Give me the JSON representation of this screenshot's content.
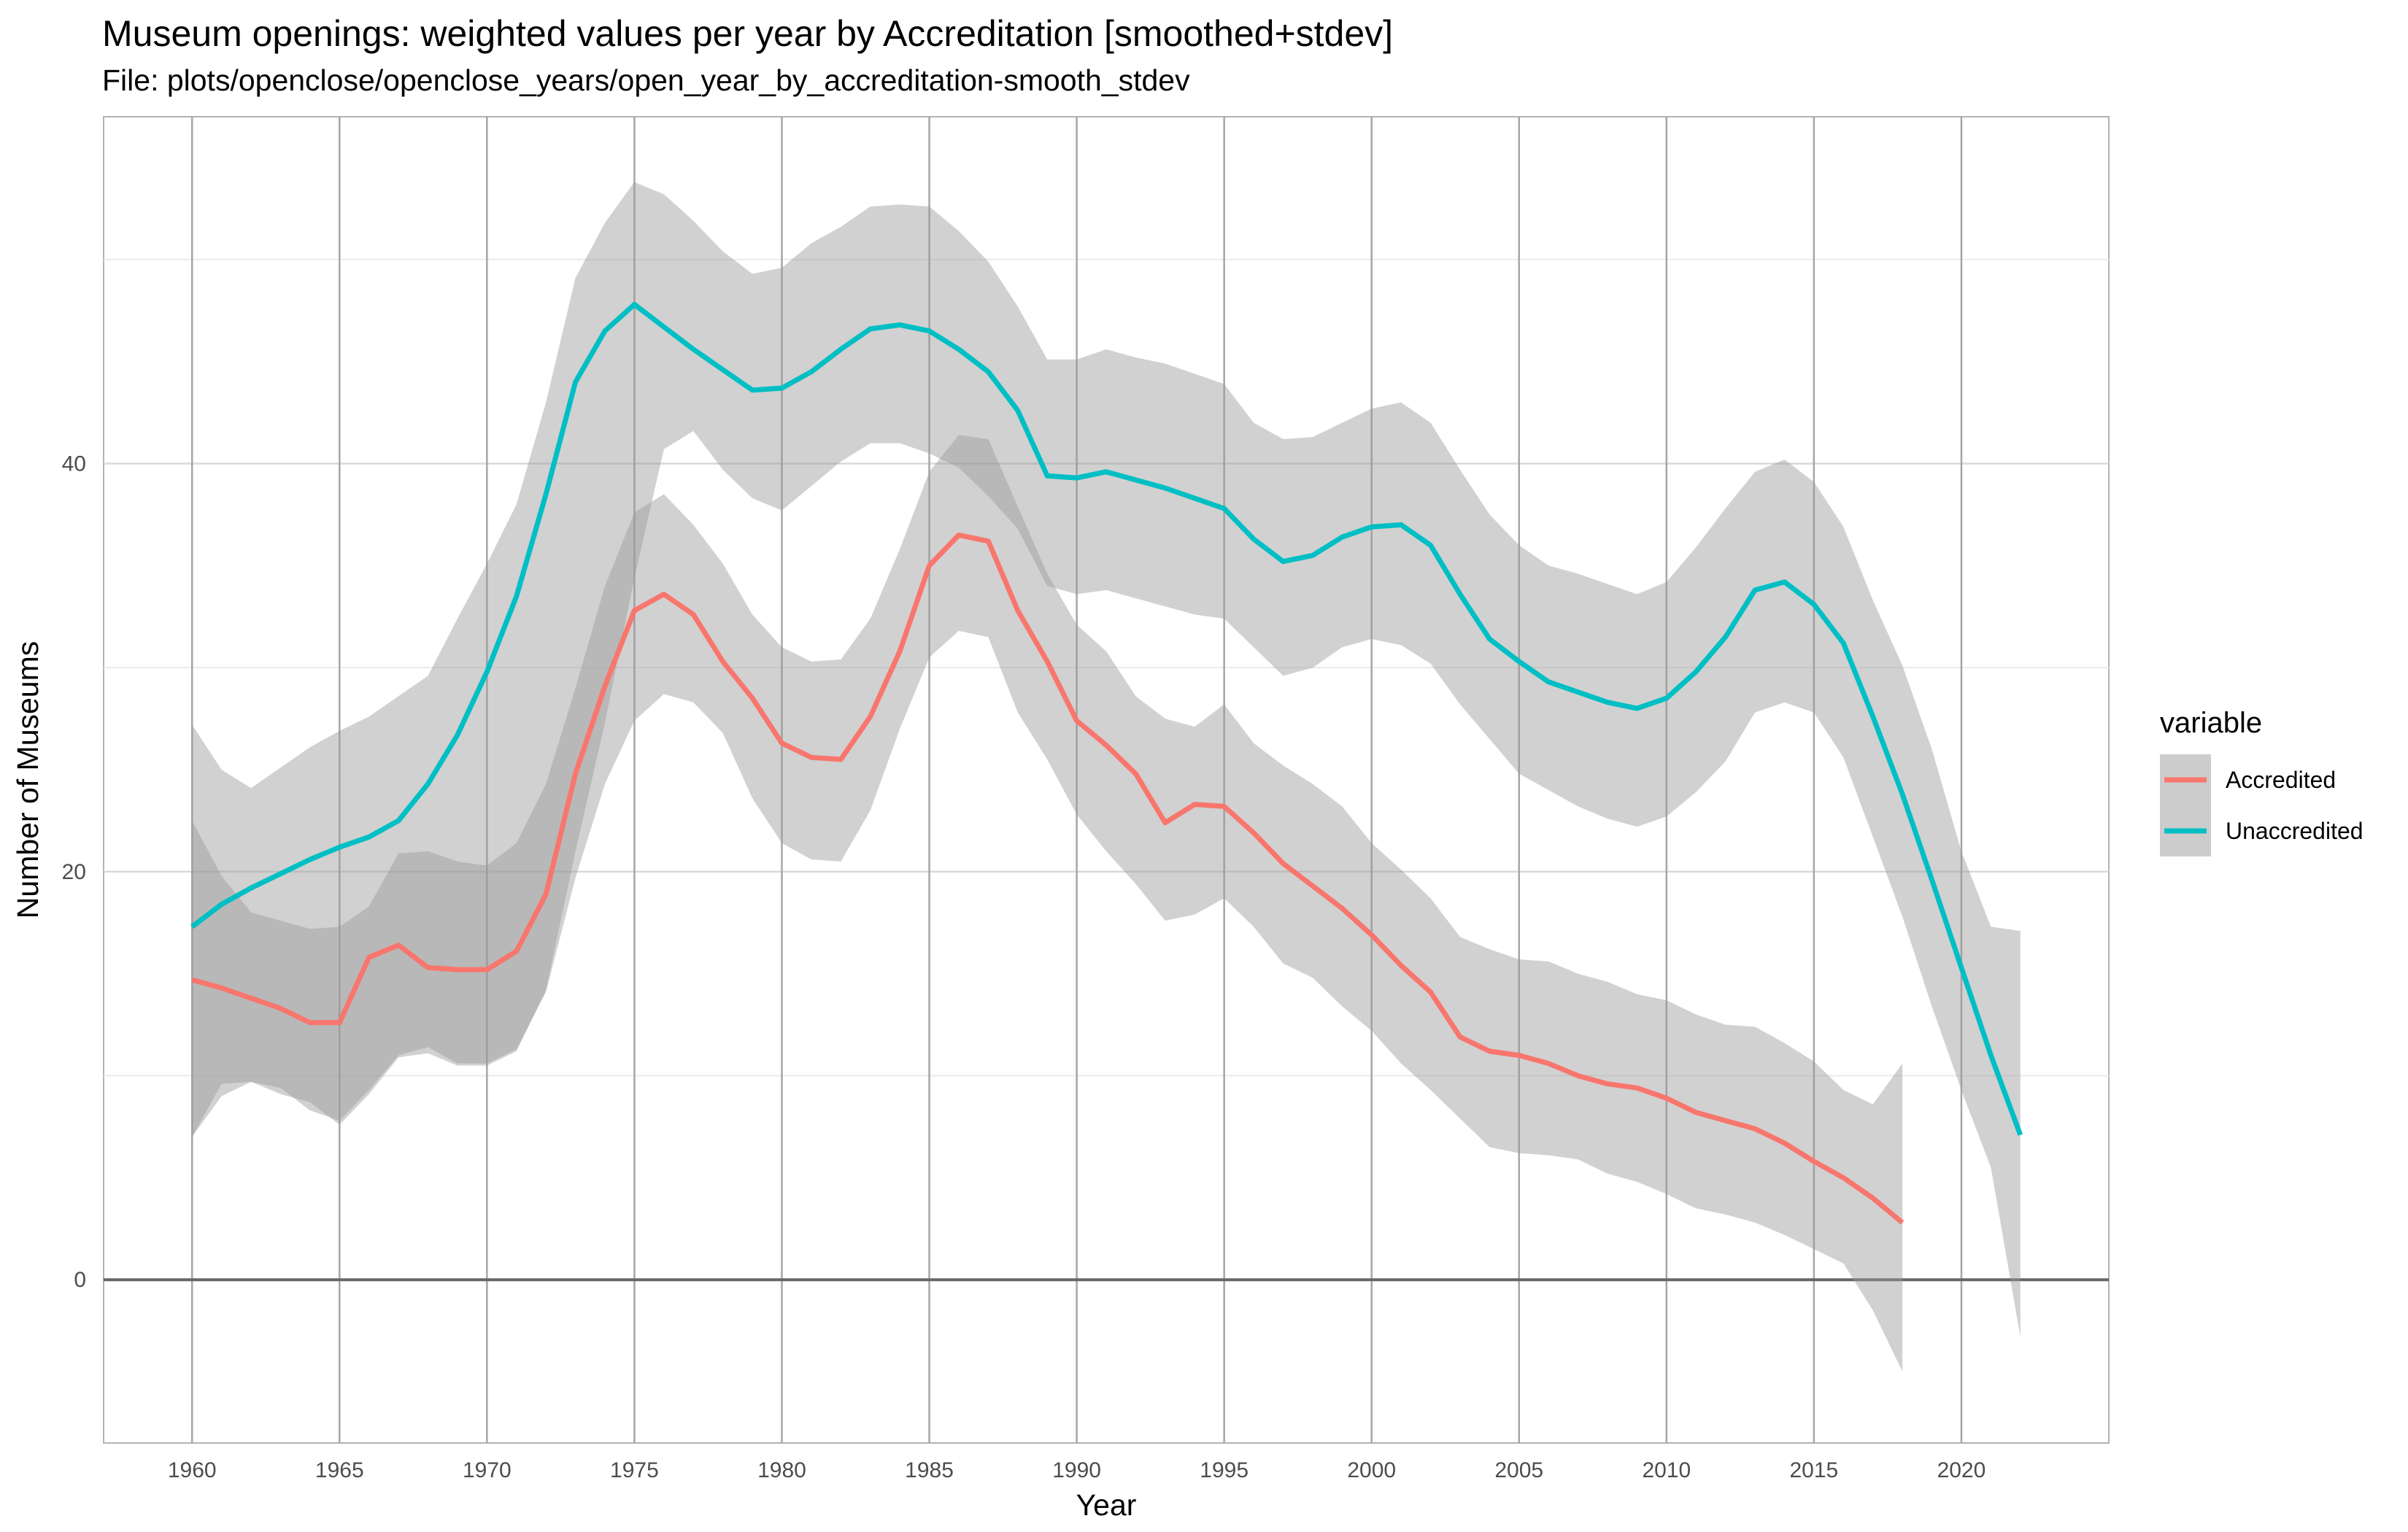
{
  "chart_data": {
    "type": "line",
    "title": "Museum openings: weighted values per year by Accreditation [smoothed+stdev]",
    "subtitle": "File: plots/openclose/openclose_years/open_year_by_accreditation-smooth_stdev",
    "xlabel": "Year",
    "ylabel": "Number of Museums",
    "xlim": [
      1957,
      2025
    ],
    "ylim": [
      -8,
      57
    ],
    "x_ticks": [
      1960,
      1965,
      1970,
      1975,
      1980,
      1985,
      1990,
      1995,
      2000,
      2005,
      2010,
      2015,
      2020
    ],
    "y_ticks": [
      0,
      20,
      40
    ],
    "grid": true,
    "reference_line_y": 0,
    "legend_title": "variable",
    "legend_position": "right",
    "series": [
      {
        "name": "Accredited",
        "color": "#F8766D",
        "x": [
          1960,
          1961,
          1962,
          1963,
          1964,
          1965,
          1966,
          1967,
          1968,
          1969,
          1970,
          1971,
          1972,
          1973,
          1974,
          1975,
          1976,
          1977,
          1978,
          1979,
          1980,
          1981,
          1982,
          1983,
          1984,
          1985,
          1986,
          1987,
          1988,
          1989,
          1990,
          1991,
          1992,
          1993,
          1994,
          1995,
          1996,
          1997,
          1998,
          1999,
          2000,
          2001,
          2002,
          2003,
          2004,
          2005,
          2006,
          2007,
          2008,
          2009,
          2010,
          2011,
          2012,
          2013,
          2014,
          2015,
          2016,
          2017,
          2018
        ],
        "y": [
          14.7,
          14.3,
          13.8,
          13.3,
          12.6,
          12.6,
          15.8,
          16.4,
          15.3,
          15.2,
          15.2,
          16.1,
          18.9,
          24.8,
          29.1,
          32.8,
          33.6,
          32.6,
          30.3,
          28.5,
          26.3,
          25.6,
          25.5,
          27.6,
          30.8,
          35.0,
          36.5,
          36.2,
          32.8,
          30.3,
          27.4,
          26.2,
          24.8,
          22.4,
          23.3,
          23.2,
          21.9,
          20.4,
          19.3,
          18.2,
          16.9,
          15.4,
          14.1,
          11.9,
          11.2,
          11.0,
          10.6,
          10.0,
          9.6,
          9.4,
          8.9,
          8.2,
          7.8,
          7.4,
          6.7,
          5.8,
          5.0,
          4.0,
          2.8
        ],
        "lower": [
          7.0,
          9.0,
          9.7,
          9.4,
          8.3,
          7.8,
          9.3,
          11.0,
          11.4,
          10.6,
          10.6,
          11.3,
          14.1,
          19.7,
          24.3,
          27.4,
          28.7,
          28.3,
          26.8,
          23.6,
          21.4,
          20.6,
          20.5,
          23.0,
          27.0,
          30.5,
          31.8,
          31.5,
          27.8,
          25.5,
          22.8,
          21.0,
          19.4,
          17.6,
          17.9,
          18.7,
          17.3,
          15.5,
          14.8,
          13.4,
          12.2,
          10.6,
          9.3,
          7.9,
          6.5,
          6.2,
          6.1,
          5.9,
          5.2,
          4.8,
          4.2,
          3.5,
          3.2,
          2.8,
          2.2,
          1.5,
          0.8,
          -1.5,
          -4.5
        ],
        "upper": [
          22.5,
          19.8,
          18.0,
          17.6,
          17.2,
          17.3,
          18.3,
          20.9,
          21.0,
          20.5,
          20.3,
          21.4,
          24.3,
          29.0,
          34.0,
          37.6,
          38.5,
          37.0,
          35.1,
          32.6,
          31.0,
          30.3,
          30.4,
          32.4,
          35.8,
          39.6,
          41.4,
          41.2,
          37.9,
          34.6,
          32.1,
          30.8,
          28.6,
          27.5,
          27.1,
          28.2,
          26.3,
          25.2,
          24.3,
          23.2,
          21.4,
          20.1,
          18.7,
          16.8,
          16.2,
          15.7,
          15.6,
          15.0,
          14.6,
          14.0,
          13.7,
          13.0,
          12.5,
          12.4,
          11.6,
          10.7,
          9.3,
          8.6,
          10.6
        ]
      },
      {
        "name": "Unaccredited",
        "color": "#00BFC4",
        "x": [
          1960,
          1961,
          1962,
          1963,
          1964,
          1965,
          1966,
          1967,
          1968,
          1969,
          1970,
          1971,
          1972,
          1973,
          1974,
          1975,
          1976,
          1977,
          1978,
          1979,
          1980,
          1981,
          1982,
          1983,
          1984,
          1985,
          1986,
          1987,
          1988,
          1989,
          1990,
          1991,
          1992,
          1993,
          1994,
          1995,
          1996,
          1997,
          1998,
          1999,
          2000,
          2001,
          2002,
          2003,
          2004,
          2005,
          2006,
          2007,
          2008,
          2009,
          2010,
          2011,
          2012,
          2013,
          2014,
          2015,
          2016,
          2017,
          2018,
          2019,
          2020,
          2021,
          2022
        ],
        "y": [
          17.3,
          18.4,
          19.2,
          19.9,
          20.6,
          21.2,
          21.7,
          22.5,
          24.3,
          26.7,
          29.8,
          33.5,
          38.5,
          44.0,
          46.5,
          47.8,
          46.7,
          45.6,
          44.6,
          43.6,
          43.7,
          44.5,
          45.6,
          46.6,
          46.8,
          46.5,
          45.6,
          44.5,
          42.6,
          39.4,
          39.3,
          39.6,
          39.2,
          38.8,
          38.3,
          37.8,
          36.3,
          35.2,
          35.5,
          36.4,
          36.9,
          37.0,
          36.0,
          33.6,
          31.4,
          30.3,
          29.3,
          28.8,
          28.3,
          28.0,
          28.5,
          29.8,
          31.5,
          33.8,
          34.2,
          33.1,
          31.2,
          27.6,
          23.8,
          19.6,
          15.3,
          11.0,
          7.1
        ],
        "lower": [
          7.0,
          9.6,
          9.7,
          9.1,
          8.7,
          7.6,
          9.1,
          10.9,
          11.1,
          10.5,
          10.5,
          11.2,
          14.2,
          21.0,
          27.3,
          34.4,
          40.7,
          41.6,
          39.7,
          38.3,
          37.7,
          38.9,
          40.1,
          41.0,
          41.0,
          40.5,
          39.8,
          38.4,
          36.8,
          34.0,
          33.6,
          33.8,
          33.4,
          33.0,
          32.6,
          32.4,
          31.0,
          29.6,
          30.0,
          31.0,
          31.4,
          31.1,
          30.2,
          28.2,
          26.5,
          24.8,
          24.0,
          23.2,
          22.6,
          22.2,
          22.7,
          23.9,
          25.4,
          27.8,
          28.3,
          27.8,
          25.6,
          21.7,
          17.8,
          13.4,
          9.3,
          5.5,
          -2.8
        ],
        "upper": [
          27.2,
          25.0,
          24.1,
          25.1,
          26.1,
          26.9,
          27.6,
          28.6,
          29.6,
          32.4,
          35.1,
          38.0,
          43.0,
          49.1,
          51.8,
          53.8,
          53.2,
          51.9,
          50.4,
          49.3,
          49.6,
          50.8,
          51.6,
          52.6,
          52.7,
          52.6,
          51.4,
          49.9,
          47.7,
          45.1,
          45.1,
          45.6,
          45.2,
          44.9,
          44.4,
          43.9,
          42.0,
          41.2,
          41.3,
          42.0,
          42.7,
          43.0,
          42.0,
          39.7,
          37.5,
          36.0,
          35.0,
          34.6,
          34.1,
          33.6,
          34.2,
          35.9,
          37.8,
          39.6,
          40.2,
          39.1,
          36.9,
          33.3,
          30.1,
          26.0,
          21.0,
          17.3,
          17.1
        ]
      }
    ]
  }
}
